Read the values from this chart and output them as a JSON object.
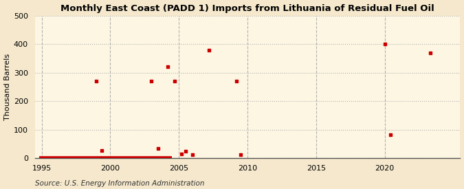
{
  "title": "Monthly East Coast (PADD 1) Imports from Lithuania of Residual Fuel Oil",
  "ylabel": "Thousand Barrels",
  "source": "Source: U.S. Energy Information Administration",
  "xlim": [
    1994.5,
    2025.5
  ],
  "ylim": [
    0,
    500
  ],
  "yticks": [
    0,
    100,
    200,
    300,
    400,
    500
  ],
  "xticks": [
    1995,
    2000,
    2005,
    2010,
    2015,
    2020
  ],
  "background_color": "#f5e8cc",
  "plot_bg_color": "#fdf6e3",
  "marker_color": "#cc0000",
  "grid_color_dotted": "#aaaaaa",
  "grid_color_dashed": "#aaaaaa",
  "nonzero_points": [
    [
      1999.0,
      270
    ],
    [
      1999.4,
      28
    ],
    [
      2003.0,
      270
    ],
    [
      2003.5,
      35
    ],
    [
      2004.2,
      322
    ],
    [
      2004.7,
      270
    ],
    [
      2005.2,
      15
    ],
    [
      2005.5,
      25
    ],
    [
      2006.0,
      12
    ],
    [
      2007.2,
      378
    ],
    [
      2009.2,
      270
    ],
    [
      2009.5,
      12
    ],
    [
      2020.0,
      400
    ],
    [
      2020.4,
      83
    ],
    [
      2023.3,
      368
    ]
  ],
  "zero_line_x": [
    1994.8,
    2004.5
  ],
  "title_fontsize": 9.5,
  "label_fontsize": 8,
  "tick_fontsize": 8,
  "source_fontsize": 7.5
}
